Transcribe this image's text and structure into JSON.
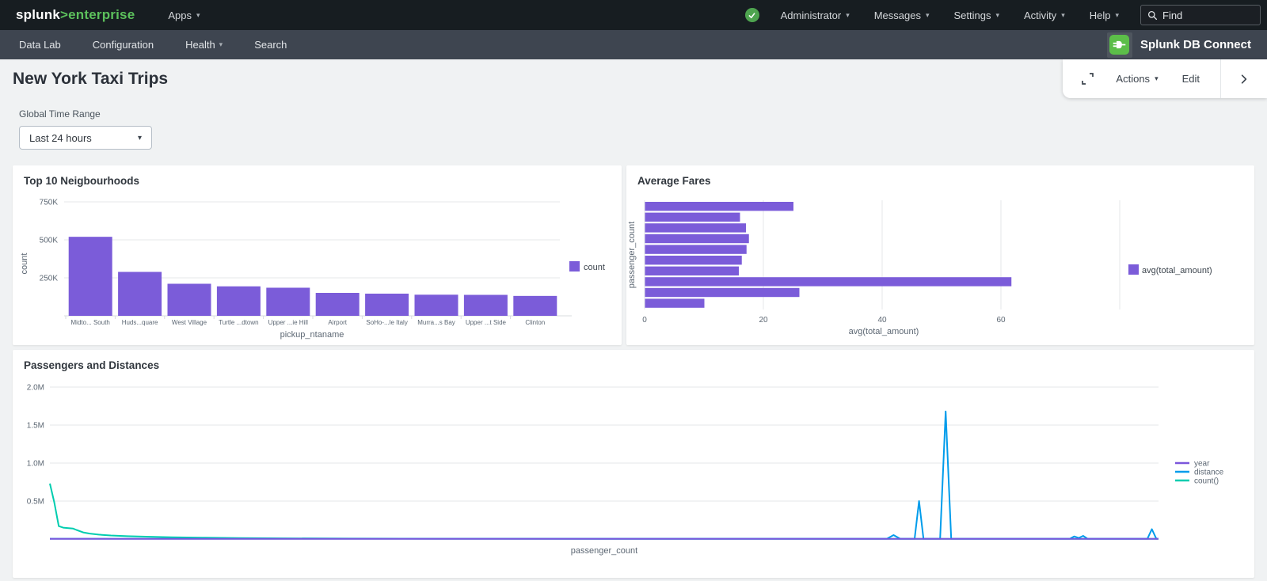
{
  "topnav": {
    "logo": {
      "splunk": "splunk",
      "gt": ">",
      "product": "enterprise"
    },
    "apps_label": "Apps",
    "menus": [
      "Administrator",
      "Messages",
      "Settings",
      "Activity",
      "Help"
    ],
    "find": {
      "placeholder": "Find"
    }
  },
  "appnav": {
    "items": [
      {
        "label": "Data Lab",
        "caret": false
      },
      {
        "label": "Configuration",
        "caret": false
      },
      {
        "label": "Health",
        "caret": true
      },
      {
        "label": "Search",
        "caret": false
      }
    ],
    "app": {
      "title": "Splunk DB Connect"
    }
  },
  "toolbar": {
    "actions_label": "Actions",
    "edit_label": "Edit"
  },
  "page": {
    "title": "New York Taxi Trips",
    "time_range": {
      "label": "Global Time Range",
      "value": "Last 24 hours"
    }
  },
  "colors": {
    "accent_purple": "#7B5CD9",
    "line_purple": "#7B56DB",
    "line_blue": "#009CEB",
    "line_teal": "#00CDAF",
    "brand_green": "#5CC05C",
    "topnav_bg": "#171D21",
    "appnav_bg": "#3E4550",
    "page_bg": "#F0F2F3",
    "grid_line": "#E4E7EA",
    "axis_text": "#5C6773"
  },
  "chart_data": [
    {
      "type": "bar",
      "title": "Top 10 Neigbourhoods",
      "categories": [
        "Midto... South",
        "Huds...quare",
        "West Village",
        "Turtle ...dtown",
        "Upper ...ie Hill",
        "Airport",
        "SoHo-...le Italy",
        "Murra...s Bay",
        "Upper ...t Side",
        "Clinton"
      ],
      "values": [
        520000,
        289000,
        211000,
        194000,
        185000,
        151000,
        146000,
        139000,
        138000,
        131000
      ],
      "xlabel": "pickup_ntaname",
      "ylabel": "count",
      "yticks": [
        {
          "v": 250000,
          "label": "250K"
        },
        {
          "v": 500000,
          "label": "500K"
        },
        {
          "v": 750000,
          "label": "750K"
        }
      ],
      "ylim": [
        0,
        780000
      ],
      "grid": "horizontal",
      "bar_color": "#7B5CD9",
      "legend_position": "right",
      "legend": [
        {
          "label": "count",
          "color": "#7B5CD9"
        }
      ]
    },
    {
      "type": "bar",
      "orientation": "horizontal",
      "title": "Average Fares",
      "values": [
        25,
        16,
        17,
        17.5,
        17.1,
        16.3,
        15.8,
        61.7,
        26,
        10
      ],
      "xlabel": "avg(total_amount)",
      "ylabel": "passenger_count",
      "xticks": [
        {
          "v": 0,
          "label": "0"
        },
        {
          "v": 20,
          "label": "20"
        },
        {
          "v": 40,
          "label": "40"
        },
        {
          "v": 60,
          "label": "60"
        },
        {
          "v": 80,
          "label": ""
        }
      ],
      "xlim": [
        0,
        81
      ],
      "grid": "vertical",
      "bar_color": "#7B5CD9",
      "legend_position": "right",
      "legend": [
        {
          "label": "avg(total_amount)",
          "color": "#7B5CD9"
        }
      ]
    },
    {
      "type": "line",
      "title": "Passengers and Distances",
      "xlabel": "passenger_count",
      "x_encoding": "percent-of-plot-width",
      "yticks": [
        {
          "v": 500000,
          "label": "0.5M"
        },
        {
          "v": 1000000,
          "label": "1.0M"
        },
        {
          "v": 1500000,
          "label": "1.5M"
        },
        {
          "v": 2000000,
          "label": "2.0M"
        }
      ],
      "ylim": [
        0,
        2100000
      ],
      "grid": "horizontal",
      "legend_position": "right",
      "series": [
        {
          "name": "year",
          "color": "#7B56DB",
          "points": [
            [
              0,
              2000
            ],
            [
              100,
              2000
            ]
          ]
        },
        {
          "name": "distance",
          "color": "#009CEB",
          "points": [
            [
              0,
              4000
            ],
            [
              75.5,
              4000
            ],
            [
              76.1,
              52000
            ],
            [
              76.7,
              4000
            ],
            [
              78.0,
              4000
            ],
            [
              78.4,
              500000
            ],
            [
              78.8,
              4000
            ],
            [
              80.3,
              4000
            ],
            [
              80.8,
              1680000
            ],
            [
              81.3,
              4000
            ],
            [
              92.0,
              4000
            ],
            [
              92.4,
              34000
            ],
            [
              92.8,
              15000
            ],
            [
              93.2,
              42000
            ],
            [
              93.6,
              4000
            ],
            [
              99.0,
              4000
            ],
            [
              99.4,
              130000
            ],
            [
              99.8,
              4000
            ],
            [
              100,
              4000
            ]
          ]
        },
        {
          "name": "count()",
          "color": "#00CDAF",
          "points": [
            [
              0,
              730000
            ],
            [
              0.4,
              480000
            ],
            [
              0.8,
              170000
            ],
            [
              1.2,
              150000
            ],
            [
              1.7,
              143000
            ],
            [
              2.1,
              138000
            ],
            [
              2.4,
              120000
            ],
            [
              3.0,
              88000
            ],
            [
              3.6,
              72000
            ],
            [
              4.4,
              58000
            ],
            [
              5.5,
              47000
            ],
            [
              7,
              38000
            ],
            [
              9,
              30000
            ],
            [
              11,
              24000
            ],
            [
              14,
              18000
            ],
            [
              17,
              13000
            ],
            [
              21,
              9000
            ],
            [
              27,
              6000
            ],
            [
              35,
              4500
            ],
            [
              50,
              3500
            ],
            [
              70,
              3000
            ],
            [
              100,
              2800
            ]
          ]
        }
      ]
    }
  ]
}
